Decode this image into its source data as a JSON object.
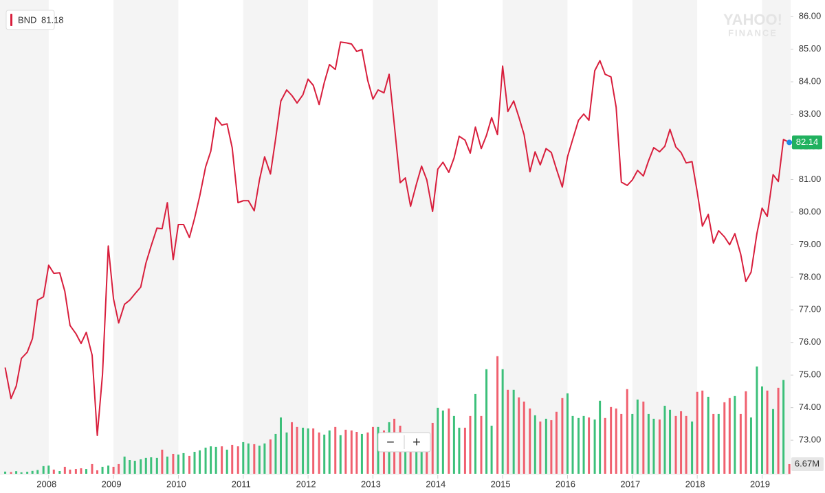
{
  "chart_data": {
    "type": "line",
    "watermark": [
      "YAHOO!",
      "FINANCE"
    ],
    "legend_value": 81.18,
    "controls": [
      "−",
      "+"
    ],
    "x": [
      2007.33,
      2007.42,
      2007.5,
      2007.58,
      2007.67,
      2007.75,
      2007.83,
      2007.92,
      2008,
      2008.08,
      2008.17,
      2008.25,
      2008.33,
      2008.42,
      2008.5,
      2008.58,
      2008.67,
      2008.75,
      2008.83,
      2008.92,
      2009,
      2009.08,
      2009.17,
      2009.25,
      2009.33,
      2009.42,
      2009.5,
      2009.58,
      2009.67,
      2009.75,
      2009.83,
      2009.92,
      2010,
      2010.08,
      2010.17,
      2010.25,
      2010.33,
      2010.42,
      2010.5,
      2010.58,
      2010.67,
      2010.75,
      2010.83,
      2010.92,
      2011,
      2011.08,
      2011.17,
      2011.25,
      2011.33,
      2011.42,
      2011.5,
      2011.58,
      2011.67,
      2011.75,
      2011.83,
      2011.92,
      2012,
      2012.08,
      2012.17,
      2012.25,
      2012.33,
      2012.42,
      2012.5,
      2012.58,
      2012.67,
      2012.75,
      2012.83,
      2012.92,
      2013,
      2013.08,
      2013.17,
      2013.25,
      2013.33,
      2013.42,
      2013.5,
      2013.58,
      2013.67,
      2013.75,
      2013.83,
      2013.92,
      2014,
      2014.08,
      2014.17,
      2014.25,
      2014.33,
      2014.42,
      2014.5,
      2014.58,
      2014.67,
      2014.75,
      2014.83,
      2014.92,
      2015,
      2015.08,
      2015.17,
      2015.25,
      2015.33,
      2015.42,
      2015.5,
      2015.58,
      2015.67,
      2015.75,
      2015.83,
      2015.92,
      2016,
      2016.08,
      2016.17,
      2016.25,
      2016.33,
      2016.42,
      2016.5,
      2016.58,
      2016.67,
      2016.75,
      2016.83,
      2016.92,
      2017,
      2017.08,
      2017.17,
      2017.25,
      2017.33,
      2017.42,
      2017.5,
      2017.58,
      2017.67,
      2017.75,
      2017.83,
      2017.92,
      2018,
      2018.08,
      2018.17,
      2018.25,
      2018.33,
      2018.42,
      2018.5,
      2018.58,
      2018.67,
      2018.75,
      2018.83,
      2018.92,
      2019,
      2019.08,
      2019.17,
      2019.25,
      2019.33,
      2019.42
    ],
    "series": [
      {
        "name": "BND",
        "color": "#d81e3c",
        "values": [
          75.23,
          74.28,
          74.66,
          75.51,
          75.7,
          76.12,
          77.3,
          77.4,
          78.37,
          78.12,
          78.14,
          77.57,
          76.52,
          76.27,
          75.97,
          76.31,
          75.61,
          73.15,
          75.02,
          78.96,
          77.34,
          76.6,
          77.17,
          77.3,
          77.49,
          77.7,
          78.44,
          78.96,
          79.51,
          79.49,
          80.29,
          78.54,
          79.62,
          79.62,
          79.22,
          79.81,
          80.5,
          81.39,
          81.87,
          82.9,
          82.67,
          82.71,
          81.98,
          80.29,
          80.35,
          80.35,
          80.04,
          80.99,
          81.7,
          81.17,
          82.25,
          83.41,
          83.75,
          83.58,
          83.35,
          83.6,
          84.08,
          83.89,
          83.3,
          83.98,
          84.53,
          84.38,
          85.22,
          85.2,
          85.16,
          84.93,
          84.99,
          84.04,
          83.47,
          83.75,
          83.66,
          84.23,
          82.67,
          80.9,
          81.05,
          80.18,
          80.86,
          81.41,
          80.99,
          80.02,
          81.32,
          81.53,
          81.22,
          81.66,
          82.33,
          82.21,
          81.81,
          82.61,
          81.95,
          82.35,
          82.9,
          82.38,
          84.48,
          83.09,
          83.41,
          82.92,
          82.38,
          81.24,
          81.85,
          81.45,
          81.95,
          81.83,
          81.32,
          80.77,
          81.7,
          82.23,
          82.82,
          83.01,
          82.82,
          84.34,
          84.65,
          84.23,
          84.15,
          83.22,
          80.92,
          80.82,
          80.99,
          81.28,
          81.11,
          81.58,
          81.98,
          81.85,
          82.02,
          82.54,
          82.0,
          81.83,
          81.51,
          81.55,
          80.61,
          79.57,
          79.93,
          79.05,
          79.43,
          79.24,
          79.0,
          79.34,
          78.71,
          77.87,
          78.16,
          79.34,
          80.12,
          79.87,
          81.15,
          80.94,
          82.23,
          82.14
        ],
        "last_color": "#21b15f"
      },
      {
        "name": "Volume",
        "axis": "y2",
        "type": "bar",
        "up_color": "#3cc07a",
        "down_color": "#f0606f",
        "values": [
          1.5,
          1.2,
          1.8,
          1.0,
          1.4,
          2.0,
          2.6,
          5.3,
          5.7,
          2.9,
          1.9,
          4.8,
          2.9,
          3.3,
          3.8,
          3.3,
          6.7,
          2.4,
          4.8,
          5.7,
          4.8,
          6.7,
          11.9,
          9.5,
          9.0,
          10.0,
          11.0,
          11.4,
          11.0,
          16.7,
          11.9,
          13.8,
          13.3,
          14.3,
          12.4,
          15.2,
          16.2,
          18.1,
          19.0,
          18.6,
          19.0,
          16.7,
          20.0,
          19.0,
          21.9,
          21.0,
          20.5,
          19.5,
          21.0,
          23.8,
          27.6,
          39.0,
          28.6,
          35.7,
          32.4,
          31.9,
          31.4,
          31.4,
          28.6,
          27.1,
          30.0,
          32.4,
          26.7,
          30.5,
          30.0,
          29.0,
          27.6,
          28.6,
          32.4,
          32.4,
          30.0,
          35.7,
          38.1,
          33.3,
          26.7,
          22.9,
          27.1,
          21.9,
          24.8,
          35.2,
          45.7,
          43.8,
          45.2,
          40.0,
          31.9,
          31.9,
          40.0,
          55.2,
          40.0,
          72.4,
          33.3,
          81.4,
          72.4,
          58.1,
          58.1,
          52.9,
          50.0,
          45.2,
          40.5,
          36.2,
          38.1,
          37.1,
          42.9,
          52.4,
          55.7,
          40.0,
          38.6,
          40.0,
          39.0,
          37.6,
          50.5,
          38.6,
          46.2,
          45.2,
          41.4,
          58.6,
          41.4,
          51.4,
          50.0,
          41.4,
          38.1,
          37.6,
          47.1,
          44.3,
          40.0,
          43.3,
          40.0,
          36.2,
          56.7,
          57.6,
          53.3,
          41.4,
          41.4,
          49.5,
          52.4,
          53.8,
          41.4,
          57.1,
          39.0,
          74.3,
          60.5,
          57.6,
          44.8,
          59.5,
          65.0,
          6.67
        ]
      }
    ],
    "xlim": [
      2007.25,
      2019.44
    ],
    "xticks": [
      2008,
      2009,
      2010,
      2011,
      2012,
      2013,
      2014,
      2015,
      2016,
      2017,
      2018,
      2019
    ],
    "ylim": [
      71.97,
      86.51
    ],
    "yticks": [
      {
        "value": 73,
        "label": "73.00"
      },
      {
        "value": 74,
        "label": "74.00"
      },
      {
        "value": 75,
        "label": "75.00"
      },
      {
        "value": 76,
        "label": "76.00"
      },
      {
        "value": 77,
        "label": "77.00"
      },
      {
        "value": 78,
        "label": "78.00"
      },
      {
        "value": 79,
        "label": "79.00"
      },
      {
        "value": 80,
        "label": "80.00"
      },
      {
        "value": 81,
        "label": "81.00"
      },
      {
        "value": 82,
        "label": "82.00"
      },
      {
        "value": 83,
        "label": "83.00"
      },
      {
        "value": 84,
        "label": "84.00"
      },
      {
        "value": 85,
        "label": "85.00"
      },
      {
        "value": 86,
        "label": "86.00"
      }
    ],
    "y2lim": [
      0,
      328
    ],
    "y2ticks": [
      {
        "value": 6.67,
        "label": "6.67M"
      }
    ],
    "grid": false
  }
}
